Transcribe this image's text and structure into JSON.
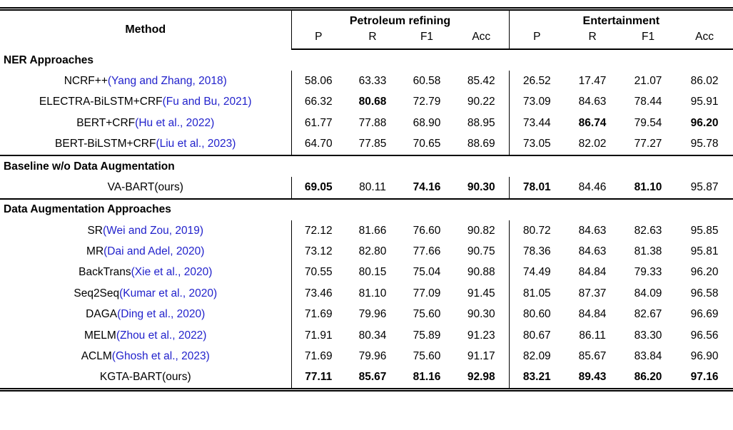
{
  "colors": {
    "citation_blue": "#2222cc",
    "text": "#000000",
    "background": "#ffffff"
  },
  "table": {
    "method_header": "Method",
    "groups": [
      {
        "label": "Petroleum refining",
        "cols": [
          "P",
          "R",
          "F1",
          "Acc"
        ]
      },
      {
        "label": "Entertainment",
        "cols": [
          "P",
          "R",
          "F1",
          "Acc"
        ]
      }
    ],
    "sections": [
      {
        "title": "NER Approaches",
        "rows": [
          {
            "name": "NCRF++",
            "cite": "Yang and Zhang, 2018",
            "cite_link": true,
            "values": [
              "58.06",
              "63.33",
              "60.58",
              "85.42",
              "26.52",
              "17.47",
              "21.07",
              "86.02"
            ],
            "bold": []
          },
          {
            "name": "ELECTRA-BiLSTM+CRF",
            "cite": "Fu and Bu, 2021",
            "cite_link": true,
            "values": [
              "66.32",
              "80.68",
              "72.79",
              "90.22",
              "73.09",
              "84.63",
              "78.44",
              "95.91"
            ],
            "bold": [
              1
            ]
          },
          {
            "name": "BERT+CRF",
            "cite": "Hu et al., 2022",
            "cite_link": true,
            "values": [
              "61.77",
              "77.88",
              "68.90",
              "88.95",
              "73.44",
              "86.74",
              "79.54",
              "96.20"
            ],
            "bold": [
              5,
              7
            ]
          },
          {
            "name": "BERT-BiLSTM+CRF",
            "cite": "Liu et al., 2023",
            "cite_link": true,
            "values": [
              "64.70",
              "77.85",
              "70.65",
              "88.69",
              "73.05",
              "82.02",
              "77.27",
              "95.78"
            ],
            "bold": []
          }
        ]
      },
      {
        "title": "Baseline w/o Data Augmentation",
        "rows": [
          {
            "name": "VA-BART",
            "cite": "ours",
            "cite_link": false,
            "values": [
              "69.05",
              "80.11",
              "74.16",
              "90.30",
              "78.01",
              "84.46",
              "81.10",
              "95.87"
            ],
            "bold": [
              0,
              2,
              3,
              4,
              6
            ]
          }
        ]
      },
      {
        "title": "Data Augmentation Approaches",
        "rows": [
          {
            "name": "SR",
            "cite": "Wei and Zou, 2019",
            "cite_link": true,
            "values": [
              "72.12",
              "81.66",
              "76.60",
              "90.82",
              "80.72",
              "84.63",
              "82.63",
              "95.85"
            ],
            "bold": []
          },
          {
            "name": "MR",
            "cite": "Dai and Adel, 2020",
            "cite_link": true,
            "values": [
              "73.12",
              "82.80",
              "77.66",
              "90.75",
              "78.36",
              "84.63",
              "81.38",
              "95.81"
            ],
            "bold": []
          },
          {
            "name": "BackTrans",
            "cite": "Xie et al., 2020",
            "cite_link": true,
            "values": [
              "70.55",
              "80.15",
              "75.04",
              "90.88",
              "74.49",
              "84.84",
              "79.33",
              "96.20"
            ],
            "bold": []
          },
          {
            "name": "Seq2Seq",
            "cite": "Kumar et al., 2020",
            "cite_link": true,
            "values": [
              "73.46",
              "81.10",
              "77.09",
              "91.45",
              "81.05",
              "87.37",
              "84.09",
              "96.58"
            ],
            "bold": []
          },
          {
            "name": "DAGA",
            "cite": "Ding et al., 2020",
            "cite_link": true,
            "values": [
              "71.69",
              "79.96",
              "75.60",
              "90.30",
              "80.60",
              "84.84",
              "82.67",
              "96.69"
            ],
            "bold": []
          },
          {
            "name": "MELM",
            "cite": "Zhou et al., 2022",
            "cite_link": true,
            "values": [
              "71.91",
              "80.34",
              "75.89",
              "91.23",
              "80.67",
              "86.11",
              "83.30",
              "96.56"
            ],
            "bold": []
          },
          {
            "name": "ACLM",
            "cite": "Ghosh et al., 2023",
            "cite_link": true,
            "values": [
              "71.69",
              "79.96",
              "75.60",
              "91.17",
              "82.09",
              "85.67",
              "83.84",
              "96.90"
            ],
            "bold": []
          },
          {
            "name": "KGTA-BART",
            "cite": "ours",
            "cite_link": false,
            "values": [
              "77.11",
              "85.67",
              "81.16",
              "92.98",
              "83.21",
              "89.43",
              "86.20",
              "97.16"
            ],
            "bold": [
              0,
              1,
              2,
              3,
              4,
              5,
              6,
              7
            ]
          }
        ]
      }
    ]
  }
}
